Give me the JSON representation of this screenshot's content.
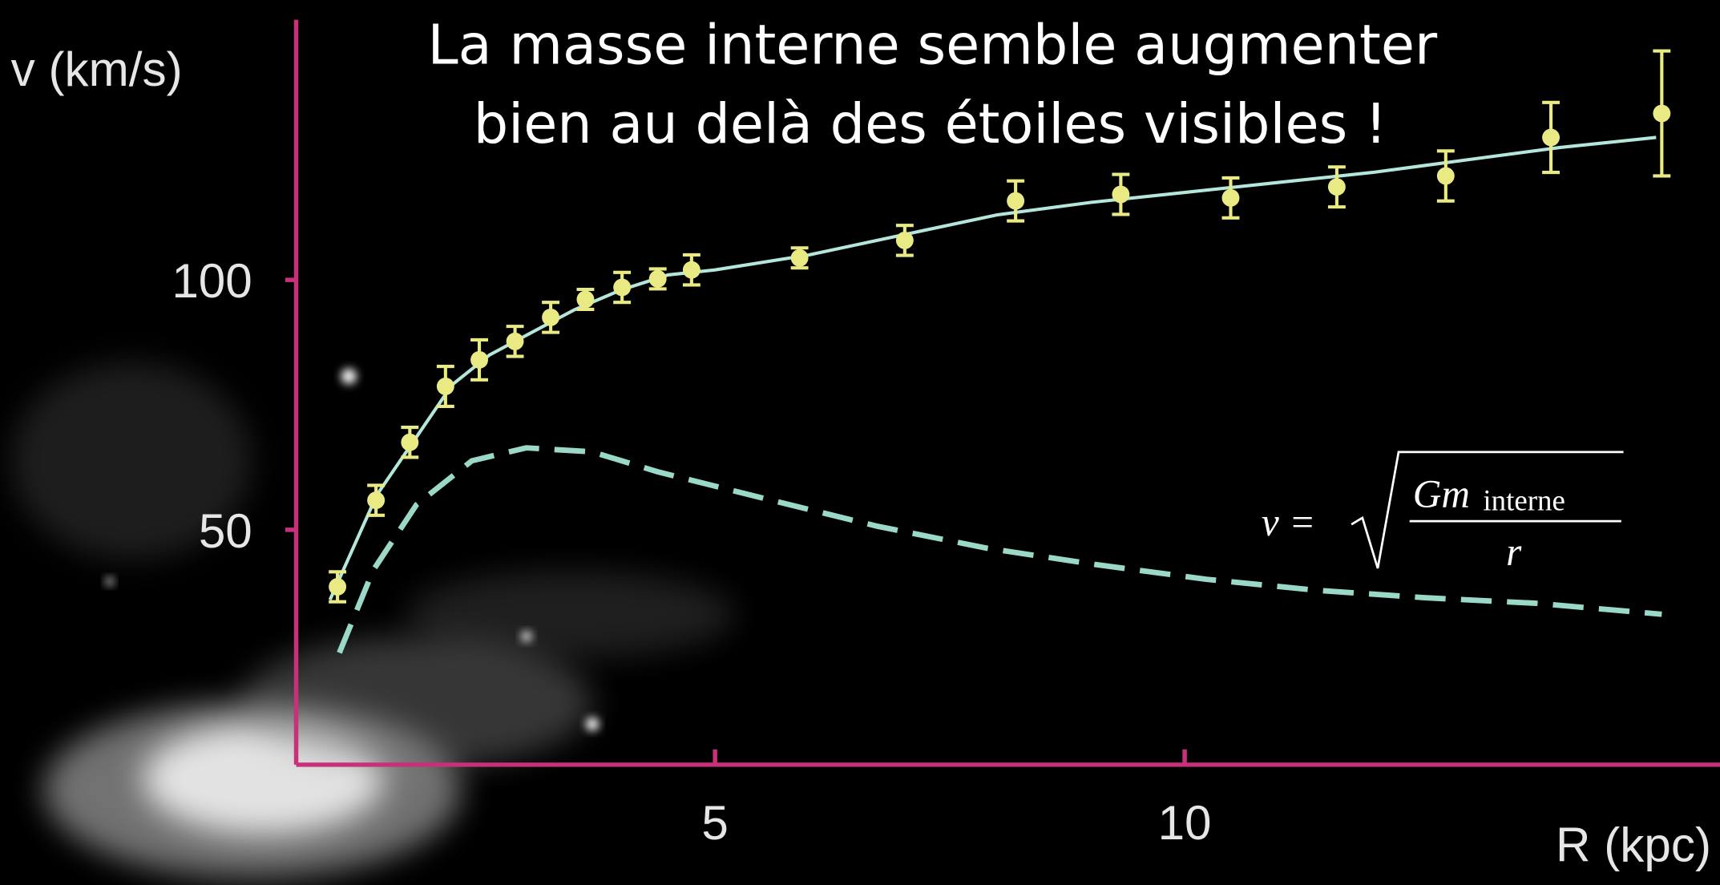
{
  "chart_data": {
    "type": "scatter",
    "title": [
      "La masse interne semble augmenter",
      "bien au delà des étoiles visibles !"
    ],
    "x_label": "R (kpc)",
    "y_label": "v (km/s)",
    "xlim": [
      0.54,
      15.7
    ],
    "ylim": [
      3,
      156
    ],
    "xticks": [
      5,
      10
    ],
    "yticks": [
      50,
      100
    ],
    "axis_color": "#c8307a",
    "formula": {
      "lhs": "v =",
      "numerator": "Gm",
      "subscript": "interne",
      "denominator": "r"
    },
    "series": [
      {
        "kind": "points",
        "color": "#eaea84",
        "x": [
          0.98,
          1.39,
          1.75,
          2.13,
          2.49,
          2.87,
          3.25,
          3.62,
          4.01,
          4.39,
          4.75,
          5.9,
          7.02,
          8.2,
          9.32,
          10.49,
          11.62,
          12.78,
          13.9,
          15.08
        ],
        "values": [
          38.6,
          55.9,
          67.5,
          78.7,
          84.0,
          87.7,
          92.5,
          96.1,
          98.5,
          100.2,
          102.0,
          104.4,
          107.9,
          115.8,
          117.1,
          116.4,
          118.6,
          120.8,
          128.5,
          133.3
        ],
        "errors": [
          3,
          3,
          3,
          4,
          4,
          3,
          3,
          2,
          3,
          2,
          3,
          2,
          3,
          4,
          4,
          4,
          4,
          5,
          7,
          12.5
        ]
      },
      {
        "kind": "line",
        "color": "#b4e6dc",
        "x": [
          0.9,
          1.4,
          1.8,
          2.2,
          2.6,
          3,
          3.5,
          4,
          4.5,
          5,
          6,
          7,
          8,
          9,
          10,
          11,
          12,
          13,
          14,
          15.02
        ],
        "values": [
          36,
          57,
          68,
          79,
          85,
          89,
          94,
          98,
          101,
          102,
          105,
          109,
          113,
          115.5,
          117.5,
          119.5,
          121.5,
          124,
          126.5,
          128.5
        ]
      },
      {
        "kind": "line",
        "dashed": true,
        "color": "#9ad8c8",
        "x": [
          1.0,
          1.36,
          1.82,
          2.41,
          2.99,
          3.69,
          4.39,
          5.56,
          6.73,
          7.9,
          9.07,
          10.23,
          11.4,
          12.57,
          13.74,
          15.08
        ],
        "values": [
          25.4,
          41.9,
          55,
          63.8,
          66.4,
          65.6,
          61.6,
          56.1,
          50.7,
          46.3,
          43.0,
          40.1,
          37.9,
          36.4,
          35.3,
          33.1
        ]
      }
    ]
  }
}
